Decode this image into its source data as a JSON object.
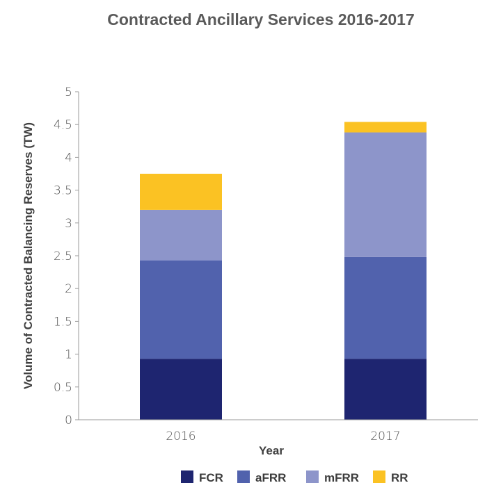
{
  "chart_data": {
    "type": "bar",
    "stacked": true,
    "title": "Contracted Ancillary Services 2016-2017",
    "xlabel": "Year",
    "ylabel": "Volume of Contracted Balancing Reserves (TW)",
    "categories": [
      "2016",
      "2017"
    ],
    "ylim": [
      0,
      5
    ],
    "yticks": [
      "0",
      "0.5",
      "1",
      "1.5",
      "2",
      "2.5",
      "3",
      "3.5",
      "4",
      "4.5",
      "5"
    ],
    "grid": false,
    "legend_position": "bottom",
    "series": [
      {
        "name": "FCR",
        "values": [
          0.93,
          0.93
        ],
        "color": "#1e2570"
      },
      {
        "name": "aFRR",
        "values": [
          1.5,
          1.55
        ],
        "color": "#5162ad"
      },
      {
        "name": "mFRR",
        "values": [
          0.77,
          1.9
        ],
        "color": "#8d95ca"
      },
      {
        "name": "RR",
        "values": [
          0.55,
          0.16
        ],
        "color": "#fbc223"
      }
    ]
  }
}
